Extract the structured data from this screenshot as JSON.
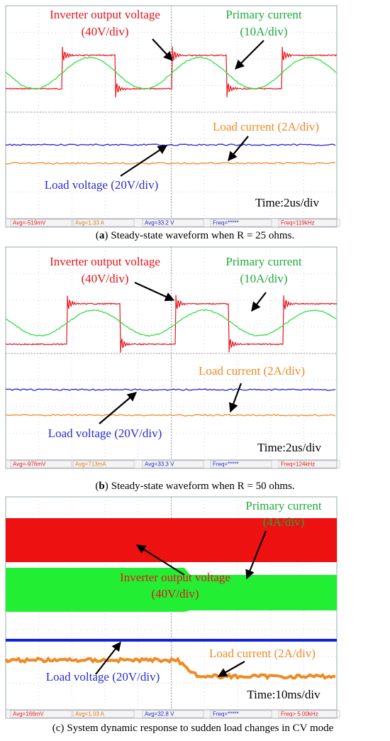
{
  "panels": [
    {
      "annotations": [
        {
          "text": "Inverter output voltage",
          "color": "#e8141c"
        },
        {
          "text": "(40V/div)",
          "color": "#e8141c"
        },
        {
          "text": "Primary current",
          "color": "#1faa3a"
        },
        {
          "text": "(10A/div)",
          "color": "#1faa3a"
        },
        {
          "text": "Load current (2A/div)",
          "color": "#f08a24"
        },
        {
          "text": "Load voltage (20V/div)",
          "color": "#2b2bd0"
        },
        {
          "text": "Time:2us/div",
          "color": "#000000"
        }
      ],
      "measurements": [
        "Avg=-519mV",
        "Avg=1.33 A",
        "Avg=33.2 V",
        "Freq=*****",
        "Freq=119kHz"
      ],
      "caption": {
        "label": "(a)",
        "text": "Steady-state waveform when R = 25 ohms."
      }
    },
    {
      "annotations": [
        {
          "text": "Inverter output voltage",
          "color": "#e8141c"
        },
        {
          "text": "(40V/div)",
          "color": "#e8141c"
        },
        {
          "text": "Primary current",
          "color": "#1faa3a"
        },
        {
          "text": "(10A/div)",
          "color": "#1faa3a"
        },
        {
          "text": "Load current (2A/div)",
          "color": "#f08a24"
        },
        {
          "text": "Load voltage (20V/div)",
          "color": "#2b2bd0"
        },
        {
          "text": "Time:2us/div",
          "color": "#000000"
        }
      ],
      "measurements": [
        "Avg=-976mV",
        "Avg=713mA",
        "Avg=33.3 V",
        "Freq=*****",
        "Freq=124kHz"
      ],
      "caption": {
        "label": "(b)",
        "text": "Steady-state waveform when R = 50 ohms."
      }
    },
    {
      "annotations": [
        {
          "text": "Primary current",
          "color": "#1faa3a"
        },
        {
          "text": "(4A/div)",
          "color": "#1faa3a"
        },
        {
          "text": "Inverter output voltage",
          "color": "#e8141c"
        },
        {
          "text": "(40V/div)",
          "color": "#e8141c"
        },
        {
          "text": "Load current (2A/div)",
          "color": "#f08a24"
        },
        {
          "text": "Load voltage (20V/div)",
          "color": "#2b2bd0"
        },
        {
          "text": "Time:10ms/div",
          "color": "#000000"
        }
      ],
      "measurements": [
        "Avg=166mV",
        "Avg=1.03 A",
        "Avg=32.8 V",
        "Freq=*****",
        "Freq> 5.00kHz"
      ],
      "caption": {
        "label": "(c)",
        "text": "System dynamic response to sudden load changes in CV mode"
      }
    }
  ]
}
